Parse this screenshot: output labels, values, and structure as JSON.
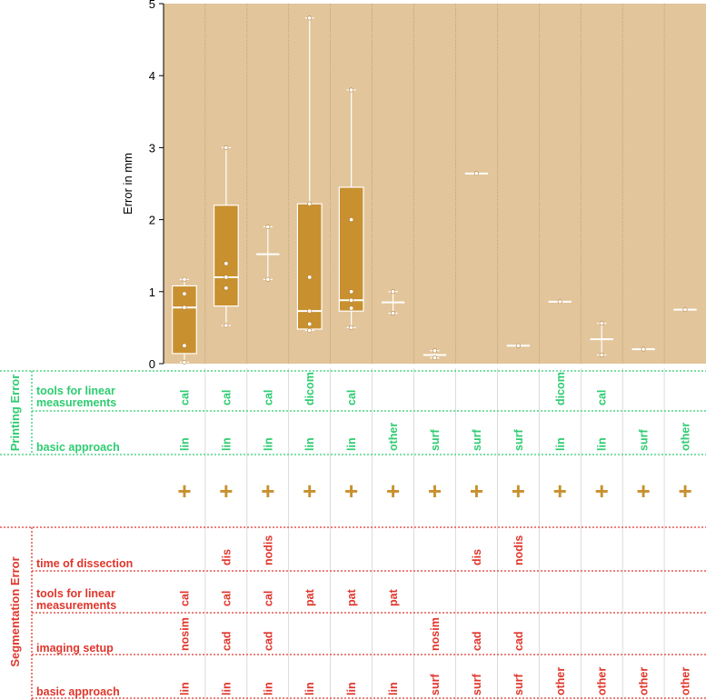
{
  "chart_data": {
    "type": "box",
    "ylabel": "Error in mm",
    "ylim": [
      0,
      5
    ],
    "yticks": [
      "0",
      "1",
      "2",
      "3",
      "4",
      "5"
    ],
    "grid": false,
    "boxes": [
      {
        "q1": 0.14,
        "median": 0.78,
        "q3": 1.08,
        "whisker_low": 0.02,
        "whisker_high": 1.17,
        "points": [
          0.02,
          0.25,
          0.78,
          0.97,
          1.17
        ]
      },
      {
        "q1": 0.8,
        "median": 1.2,
        "q3": 2.2,
        "whisker_low": 0.53,
        "whisker_high": 3.0,
        "points": [
          0.53,
          1.05,
          1.2,
          1.39,
          3.0
        ]
      },
      {
        "q1": 1.52,
        "median": 1.52,
        "q3": 1.52,
        "whisker_low": 1.17,
        "whisker_high": 1.9,
        "points": [
          1.17,
          1.9
        ]
      },
      {
        "q1": 0.48,
        "median": 0.73,
        "q3": 2.22,
        "whisker_low": 0.46,
        "whisker_high": 4.8,
        "points": [
          0.46,
          0.55,
          0.73,
          1.2,
          2.22,
          4.8
        ]
      },
      {
        "q1": 0.73,
        "median": 0.88,
        "q3": 2.45,
        "whisker_low": 0.5,
        "whisker_high": 3.8,
        "points": [
          0.5,
          0.77,
          0.88,
          1.0,
          2.0,
          3.8
        ]
      },
      {
        "q1": 0.85,
        "median": 0.85,
        "q3": 0.85,
        "whisker_low": 0.7,
        "whisker_high": 1.0,
        "points": [
          0.7,
          1.0
        ]
      },
      {
        "q1": 0.12,
        "median": 0.12,
        "q3": 0.12,
        "whisker_low": 0.08,
        "whisker_high": 0.18,
        "points": [
          0.08,
          0.18
        ]
      },
      {
        "q1": 2.64,
        "median": 2.64,
        "q3": 2.64,
        "whisker_low": 2.64,
        "whisker_high": 2.64,
        "points": [
          2.64
        ]
      },
      {
        "q1": 0.25,
        "median": 0.25,
        "q3": 0.25,
        "whisker_low": 0.25,
        "whisker_high": 0.25,
        "points": [
          0.25
        ]
      },
      {
        "q1": 0.86,
        "median": 0.86,
        "q3": 0.86,
        "whisker_low": 0.86,
        "whisker_high": 0.86,
        "points": [
          0.86
        ]
      },
      {
        "q1": 0.34,
        "median": 0.34,
        "q3": 0.34,
        "whisker_low": 0.12,
        "whisker_high": 0.56,
        "points": [
          0.12,
          0.56
        ]
      },
      {
        "q1": 0.2,
        "median": 0.2,
        "q3": 0.2,
        "whisker_low": 0.2,
        "whisker_high": 0.2,
        "points": [
          0.2
        ]
      },
      {
        "q1": 0.75,
        "median": 0.75,
        "q3": 0.75,
        "whisker_low": 0.75,
        "whisker_high": 0.75,
        "points": [
          0.75
        ]
      }
    ],
    "plus_symbol": "+",
    "printing_error": {
      "group_label": "Printing Error",
      "rows": [
        {
          "label": [
            "tools for linear",
            "measurements"
          ],
          "values": [
            "cal",
            "cal",
            "cal",
            "dicom",
            "cal",
            "",
            "",
            "",
            "",
            "dicom",
            "cal",
            "",
            ""
          ]
        },
        {
          "label": [
            "basic approach"
          ],
          "values": [
            "lin",
            "lin",
            "lin",
            "lin",
            "lin",
            "other",
            "surf",
            "surf",
            "surf",
            "lin",
            "lin",
            "surf",
            "other"
          ]
        }
      ]
    },
    "segmentation_error": {
      "group_label": "Segmentation Error",
      "rows": [
        {
          "label": [
            "time of dissection"
          ],
          "values": [
            "",
            "dis",
            "nodis",
            "",
            "",
            "",
            "",
            "dis",
            "nodis",
            "",
            "",
            "",
            ""
          ]
        },
        {
          "label": [
            "tools for linear",
            "measurements"
          ],
          "values": [
            "cal",
            "cal",
            "cal",
            "pat",
            "pat",
            "pat",
            "",
            "",
            "",
            "",
            "",
            "",
            ""
          ]
        },
        {
          "label": [
            "imaging setup"
          ],
          "values": [
            "nosim",
            "cad",
            "cad",
            "",
            "",
            "",
            "nosim",
            "cad",
            "cad",
            "",
            "",
            "",
            ""
          ]
        },
        {
          "label": [
            "basic approach"
          ],
          "values": [
            "lin",
            "lin",
            "lin",
            "lin",
            "lin",
            "lin",
            "surf",
            "surf",
            "surf",
            "other",
            "other",
            "other",
            "other"
          ]
        }
      ]
    },
    "colors": {
      "plot_bg": "#e2c59a",
      "box_fill": "#c8902f",
      "box_stroke": "#ffffff",
      "printing": "#2ecc71",
      "segmentation": "#e0362c",
      "plus": "#c8902f"
    }
  }
}
